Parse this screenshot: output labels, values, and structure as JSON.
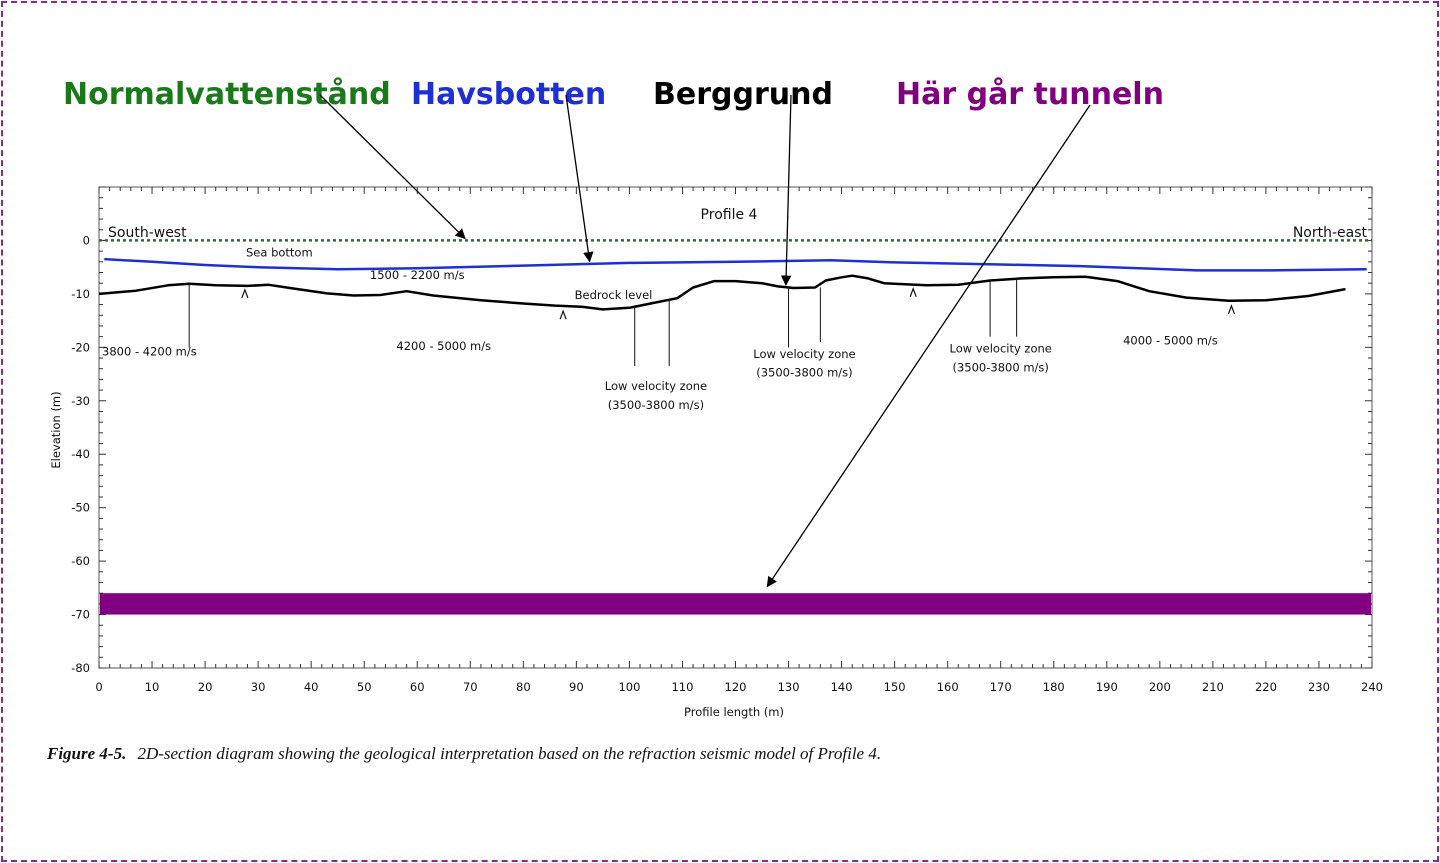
{
  "annotations": {
    "normal_water": {
      "label": "Normalvattenstånd",
      "color": "#1a7a1a"
    },
    "sea_bottom": {
      "label": "Havsbotten",
      "color": "#1f2fd6"
    },
    "bedrock": {
      "label": "Berggrund",
      "color": "#000000"
    },
    "tunnel": {
      "label": "Här går tunneln",
      "color": "#800080"
    }
  },
  "caption": {
    "label": "Figure 4-5.",
    "text": "2D-section diagram showing the geological interpretation based on the refraction seismic model of Profile 4."
  },
  "chart_data": {
    "type": "line",
    "title": "Profile 4",
    "xlabel": "Profile length (m)",
    "ylabel": "Elevation (m)",
    "xlim": [
      0,
      240
    ],
    "ylim": [
      -80,
      10
    ],
    "x_ticks": [
      0,
      10,
      20,
      30,
      40,
      50,
      60,
      70,
      80,
      90,
      100,
      110,
      120,
      130,
      140,
      150,
      160,
      170,
      180,
      190,
      200,
      210,
      220,
      230,
      240
    ],
    "y_ticks": [
      0,
      -10,
      -20,
      -30,
      -40,
      -50,
      -60,
      -70,
      -80
    ],
    "corner_labels": {
      "left": "South-west",
      "right": "North-east"
    },
    "series": [
      {
        "name": "Normalvattenstånd",
        "color": "#1a7a1a",
        "style": "dotted",
        "points": [
          [
            0,
            0
          ],
          [
            240,
            0
          ]
        ]
      },
      {
        "name": "Sea bottom",
        "color": "#1f2fd6",
        "style": "solid",
        "points": [
          [
            1,
            -3.5
          ],
          [
            10,
            -4
          ],
          [
            20,
            -4.6
          ],
          [
            30,
            -5
          ],
          [
            45,
            -5.4
          ],
          [
            60,
            -5.2
          ],
          [
            80,
            -4.7
          ],
          [
            100,
            -4.2
          ],
          [
            120,
            -4
          ],
          [
            138,
            -3.7
          ],
          [
            150,
            -4.1
          ],
          [
            170,
            -4.5
          ],
          [
            185,
            -4.8
          ],
          [
            196,
            -5.2
          ],
          [
            207,
            -5.6
          ],
          [
            220,
            -5.6
          ],
          [
            239,
            -5.4
          ]
        ]
      },
      {
        "name": "Bedrock level",
        "color": "#000000",
        "style": "solid",
        "points": [
          [
            0,
            -10
          ],
          [
            7,
            -9.4
          ],
          [
            13,
            -8.4
          ],
          [
            17,
            -8.1
          ],
          [
            22,
            -8.4
          ],
          [
            28,
            -8.5
          ],
          [
            32,
            -8.3
          ],
          [
            36,
            -8.9
          ],
          [
            43,
            -9.9
          ],
          [
            48,
            -10.3
          ],
          [
            53,
            -10.2
          ],
          [
            58,
            -9.5
          ],
          [
            63,
            -10.3
          ],
          [
            72,
            -11.2
          ],
          [
            80,
            -11.8
          ],
          [
            86,
            -12.2
          ],
          [
            91,
            -12.4
          ],
          [
            95,
            -12.9
          ],
          [
            100,
            -12.6
          ],
          [
            104,
            -11.8
          ],
          [
            109,
            -10.8
          ],
          [
            112,
            -8.8
          ],
          [
            116,
            -7.6
          ],
          [
            120,
            -7.6
          ],
          [
            125,
            -8
          ],
          [
            128,
            -8.6
          ],
          [
            131,
            -8.9
          ],
          [
            135,
            -8.8
          ],
          [
            137,
            -7.5
          ],
          [
            140,
            -6.9
          ],
          [
            142,
            -6.6
          ],
          [
            145,
            -7.1
          ],
          [
            148,
            -8
          ],
          [
            156,
            -8.4
          ],
          [
            162,
            -8.3
          ],
          [
            168,
            -7.5
          ],
          [
            174,
            -7.1
          ],
          [
            180,
            -6.9
          ],
          [
            186,
            -6.8
          ],
          [
            192,
            -7.6
          ],
          [
            198,
            -9.5
          ],
          [
            205,
            -10.7
          ],
          [
            213,
            -11.3
          ],
          [
            220,
            -11.2
          ],
          [
            228,
            -10.4
          ],
          [
            235,
            -9.1
          ]
        ]
      },
      {
        "name": "Här går tunneln",
        "color": "#800080",
        "style": "band",
        "band": [
          -66,
          -70
        ],
        "x_range": [
          0,
          240
        ]
      }
    ],
    "region_labels": [
      {
        "text": "Sea bottom",
        "x": 34,
        "y": -3
      },
      {
        "text": "1500 - 2200 m/s",
        "x": 60,
        "y": -7.2
      },
      {
        "text": "Bedrock level",
        "x": 97,
        "y": -11
      },
      {
        "text": "3800 - 4200 m/s",
        "x": 9.5,
        "y": -21.5
      },
      {
        "text": "4200 - 5000 m/s",
        "x": 65,
        "y": -20.5
      },
      {
        "text": "Low velocity zone",
        "x": 105,
        "y": -28
      },
      {
        "text": "(3500-3800 m/s)",
        "x": 105,
        "y": -31.5
      },
      {
        "text": "Low velocity zone",
        "x": 133,
        "y": -22
      },
      {
        "text": "(3500-3800 m/s)",
        "x": 133,
        "y": -25.5
      },
      {
        "text": "Low velocity zone",
        "x": 170,
        "y": -21
      },
      {
        "text": "(3500-3800 m/s)",
        "x": 170,
        "y": -24.5
      },
      {
        "text": "4000 - 5000 m/s",
        "x": 202,
        "y": -19.5
      }
    ],
    "zone_markers": [
      {
        "x": 17,
        "y_top": -8.1,
        "y_bottom": -20
      },
      {
        "x": 101,
        "y_top": -12.6,
        "y_bottom": -23.5
      },
      {
        "x": 107.5,
        "y_top": -11.2,
        "y_bottom": -23.5
      },
      {
        "x": 130,
        "y_top": -8.9,
        "y_bottom": -20
      },
      {
        "x": 136,
        "y_top": -8.8,
        "y_bottom": -19
      },
      {
        "x": 168,
        "y_top": -7.4,
        "y_bottom": -18
      },
      {
        "x": 173,
        "y_top": -7.1,
        "y_bottom": -18
      }
    ],
    "caret_markers": [
      {
        "x": 27.5,
        "y": -9.8
      },
      {
        "x": 87.5,
        "y": -13.8
      },
      {
        "x": 153.5,
        "y": -9.6
      },
      {
        "x": 213.5,
        "y": -12.8
      }
    ]
  }
}
